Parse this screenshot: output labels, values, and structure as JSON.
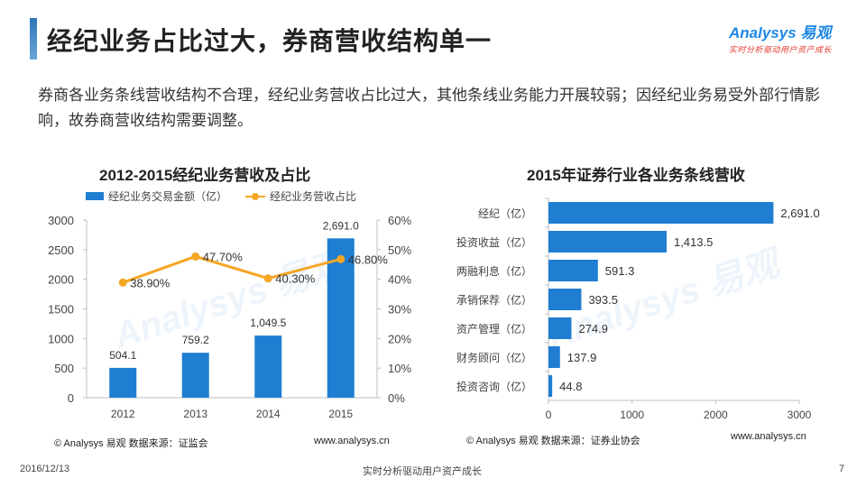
{
  "header": {
    "title": "经纪业务占比过大，券商营收结构单一",
    "brand_name": "Analysys 易观",
    "brand_slogan": "实时分析驱动用户资产成长"
  },
  "summary": "券商各业务条线营收结构不合理，经纪业务营收占比过大，其他条线业务能力开展较弱；因经纪业务易受外部行情影响，故券商营收结构需要调整。",
  "chart_data": [
    {
      "type": "bar",
      "title": "2012-2015经纪业务营收及占比",
      "categories": [
        "2012",
        "2013",
        "2014",
        "2015"
      ],
      "series": [
        {
          "name": "经纪业务交易金额（亿）",
          "kind": "bar",
          "axis": "left",
          "values": [
            504.1,
            759.2,
            1049.5,
            2691.0
          ],
          "labels": [
            "504.1",
            "759.2",
            "1,049.5",
            "2,691.0"
          ]
        },
        {
          "name": "经纪业务营收占比",
          "kind": "line",
          "axis": "right",
          "values": [
            38.9,
            47.7,
            40.3,
            46.8
          ],
          "labels": [
            "38.90%",
            "47.70%",
            "40.30%",
            "46.80%"
          ]
        }
      ],
      "ylim": [
        0,
        3000
      ],
      "yticks": [
        "0",
        "500",
        "1000",
        "1500",
        "2000",
        "2500",
        "3000"
      ],
      "y2lim": [
        0,
        60
      ],
      "y2ticks": [
        "0%",
        "10%",
        "20%",
        "30%",
        "40%",
        "50%",
        "60%"
      ],
      "bar_color": "#1f7ed1",
      "line_color": "#f5a623",
      "legend": "top"
    },
    {
      "type": "bar",
      "orientation": "horizontal",
      "title": "2015年证券行业各业务条线营收",
      "categories": [
        "经纪（亿）",
        "投资收益（亿）",
        "两融利息（亿）",
        "承销保荐（亿）",
        "资产管理（亿）",
        "财务顾问（亿）",
        "投资咨询（亿）"
      ],
      "values": [
        2691.0,
        1413.5,
        591.3,
        393.5,
        274.9,
        137.9,
        44.8
      ],
      "labels": [
        "2,691.0",
        "1,413.5",
        "591.3",
        "393.5",
        "274.9",
        "137.9",
        "44.8"
      ],
      "xlim": [
        0,
        3000
      ],
      "xticks": [
        "0",
        "1000",
        "2000",
        "3000"
      ],
      "bar_color": "#1f7ed1"
    }
  ],
  "sources": {
    "left": "© Analysys 易观   数据来源：证监会",
    "left_url": "www.analysys.cn",
    "right": "© Analysys 易观   数据来源：证券业协会",
    "right_url": "www.analysys.cn"
  },
  "footer": {
    "date": "2016/12/13",
    "center": "实时分析驱动用户资产成长",
    "page": "7"
  }
}
